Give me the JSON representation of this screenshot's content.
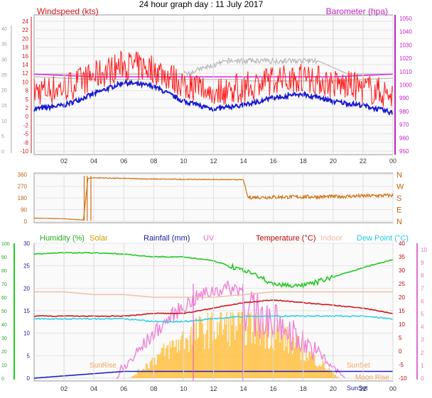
{
  "title": "24 hour graph day : 11 July 2017",
  "x_ticks": [
    "02",
    "04",
    "06",
    "08",
    "10",
    "12",
    "14",
    "16",
    "18",
    "20",
    "22",
    "00"
  ],
  "panels": {
    "wind": {
      "label_left": "Windspeed (kts)",
      "label_right": "Barometer (hpa)",
      "color_left": "#d0171f",
      "color_right": "#c020c0",
      "left_ticks": [
        "24",
        "22",
        "20",
        "18",
        "16",
        "14",
        "12",
        "10",
        "8",
        "5",
        "2",
        "0",
        "-2",
        "-5",
        "-8",
        "-10"
      ],
      "right_ticks": [
        "1050",
        "1040",
        "1030",
        "1020",
        "1010",
        "1000",
        "990",
        "980",
        "970",
        "960",
        "950"
      ],
      "outer_ticks": [
        "40",
        "35",
        "30",
        "25",
        "20",
        "15",
        "10",
        "5",
        "0"
      ]
    },
    "direction": {
      "left_ticks": [
        "360",
        "270",
        "180",
        "90",
        "0"
      ],
      "right_labels": [
        "N",
        "W",
        "S",
        "E",
        "N"
      ]
    },
    "env": {
      "legend": [
        {
          "text": "Humidity (%)",
          "color": "#22aa22"
        },
        {
          "text": "Solar",
          "color": "#c8a000"
        },
        {
          "text": "Rainfall (mm)",
          "color": "#1a1aa0"
        },
        {
          "text": "UV",
          "color": "#e070d0"
        },
        {
          "text": "Temperature (°C)",
          "color": "#c00000"
        },
        {
          "text": "Indoor",
          "color": "#f0b8a0"
        },
        {
          "text": "Dew Point (°C)",
          "color": "#20c8e0"
        }
      ],
      "humidity_ticks": [
        "100",
        "90",
        "80",
        "70",
        "60",
        "50",
        "40",
        "30",
        "20",
        "10",
        "0"
      ],
      "rain_ticks": [
        "30",
        "25",
        "20",
        "15",
        "10",
        "5",
        "0"
      ],
      "temp_ticks": [
        "40",
        "35",
        "30",
        "25",
        "20",
        "15",
        "10",
        "5",
        "0",
        "-5",
        "-10"
      ],
      "uv_ticks": [
        "10",
        "9",
        "8",
        "7",
        "6",
        "5",
        "4",
        "3",
        "2",
        "1",
        "0"
      ],
      "sunrise": "SunRise",
      "sunset": "SunSet",
      "moonrise": "Moon Rise",
      "sunset2": "SunSet"
    }
  },
  "chart_data": [
    {
      "type": "line",
      "title": "24 hour graph day : 11 July 2017",
      "ylabel": "Windspeed (kts)",
      "y2label": "Barometer (hpa)",
      "x_hours": [
        0,
        2,
        4,
        6,
        8,
        10,
        12,
        14,
        16,
        18,
        20,
        22,
        24
      ],
      "series": [
        {
          "name": "Windspeed (kts)",
          "values": [
            1,
            2,
            5,
            8,
            7,
            3,
            1,
            2,
            4,
            5,
            3,
            2,
            0
          ]
        },
        {
          "name": "Barometer (hpa)",
          "values": [
            1008,
            1007,
            1006,
            1006,
            1006,
            1006,
            1006,
            1006,
            1006,
            1006,
            1006,
            1007,
            1008
          ]
        }
      ],
      "ylim": [
        -10,
        24
      ],
      "y2lim": [
        950,
        1050
      ]
    },
    {
      "type": "line",
      "x_hours": [
        0,
        2,
        3.3,
        3.6,
        4,
        8,
        14,
        14.3,
        20,
        24
      ],
      "series": [
        {
          "name": "Wind direction",
          "values": [
            25,
            20,
            10,
            330,
            335,
            325,
            320,
            185,
            190,
            200
          ]
        }
      ],
      "ylim": [
        0,
        360
      ]
    },
    {
      "type": "line",
      "x_hours": [
        0,
        2,
        4,
        6,
        8,
        10,
        12,
        14,
        16,
        18,
        20,
        22,
        24
      ],
      "series": [
        {
          "name": "Humidity (%)",
          "values": [
            92,
            93,
            93,
            92,
            90,
            90,
            87,
            80,
            70,
            68,
            75,
            82,
            88
          ]
        },
        {
          "name": "Temperature (°C)",
          "values": [
            13,
            13,
            13,
            13,
            14,
            14,
            16,
            18,
            19,
            18,
            17,
            16,
            14
          ]
        },
        {
          "name": "Indoor",
          "values": [
            22,
            22,
            21,
            21,
            20,
            20,
            20,
            21,
            22,
            22,
            22,
            22,
            22
          ]
        },
        {
          "name": "Dew Point (°C)",
          "values": [
            12,
            12,
            12,
            12,
            11,
            11,
            12,
            13,
            13,
            13,
            13,
            13,
            12
          ]
        },
        {
          "name": "Rainfall (mm)",
          "values": [
            0,
            0.5,
            1,
            1.5,
            1.5,
            1.5,
            1.5,
            1.5,
            1.5,
            1.5,
            1.5,
            1.5,
            1.5
          ]
        }
      ],
      "ylim": [
        0,
        100
      ],
      "y2lim": [
        -10,
        40
      ]
    }
  ]
}
